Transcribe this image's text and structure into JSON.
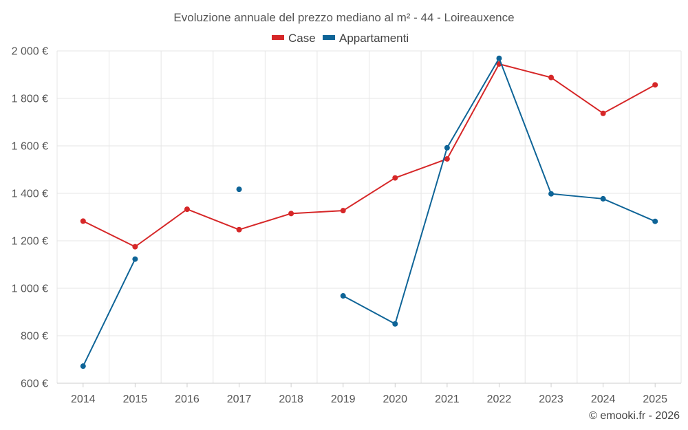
{
  "chart_data": {
    "type": "line",
    "title": "Evoluzione annuale del prezzo mediano al m² - 44 - Loireauxence",
    "categories": [
      "2014",
      "2015",
      "2016",
      "2017",
      "2018",
      "2019",
      "2020",
      "2021",
      "2022",
      "2023",
      "2024",
      "2025"
    ],
    "series": [
      {
        "name": "Case",
        "color": "#d62728",
        "values": [
          1283,
          1175,
          1333,
          1247,
          1315,
          1327,
          1465,
          1545,
          1945,
          1888,
          1737,
          1857
        ]
      },
      {
        "name": "Appartamenti",
        "color": "#0e6497",
        "values": [
          672,
          1123,
          null,
          1417,
          null,
          968,
          850,
          1592,
          1969,
          1398,
          1377,
          1282
        ]
      }
    ],
    "ylim": [
      600,
      2000
    ],
    "yticks": [
      600,
      800,
      1000,
      1200,
      1400,
      1600,
      1800,
      2000
    ],
    "ytick_labels": [
      "600 €",
      "800 €",
      "1 000 €",
      "1 200 €",
      "1 400 €",
      "1 600 €",
      "1 800 €",
      "2 000 €"
    ],
    "grid": true,
    "legend_position": "top-center"
  },
  "credit": "© emooki.fr - 2026"
}
